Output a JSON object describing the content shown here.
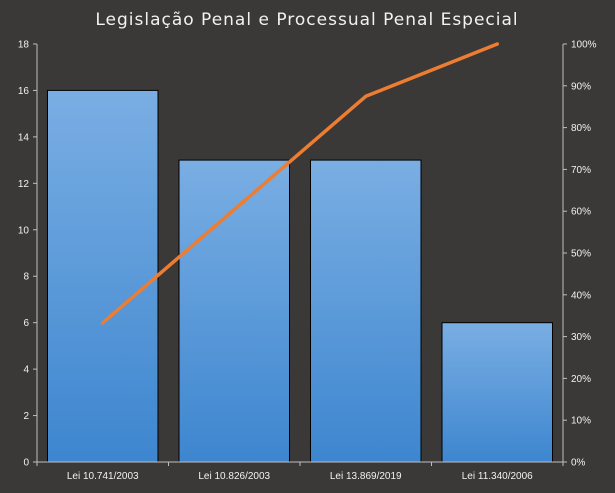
{
  "chart_data": {
    "type": "bar",
    "title": "Legislação Penal e Processual Penal Especial",
    "categories": [
      "Lei 10.741/2003",
      "Lei 10.826/2003",
      "Lei 13.869/2019",
      "Lei 11.340/2006"
    ],
    "series": [
      {
        "type": "bar",
        "values": [
          16,
          13,
          13,
          6
        ],
        "axis": "left"
      },
      {
        "type": "line",
        "values": [
          33.3,
          60.4,
          87.5,
          100
        ],
        "axis": "right",
        "unit": "%"
      }
    ],
    "ylim": [
      0,
      18
    ],
    "yticks": [
      "0",
      "2",
      "4",
      "6",
      "8",
      "10",
      "12",
      "14",
      "16",
      "18"
    ],
    "y2lim": [
      0,
      100
    ],
    "y2ticks": [
      "0%",
      "10%",
      "20%",
      "30%",
      "40%",
      "50%",
      "60%",
      "70%",
      "80%",
      "90%",
      "100%"
    ],
    "grid": false,
    "legend": "none",
    "colors": {
      "background": "#3b3838",
      "bar_top": "#7aaee3",
      "bar_bottom": "#3d86cf",
      "bar_edge": "#000000",
      "line": "#ed7d31",
      "axis": "#bfbfbf",
      "text": "#f2f2f2"
    }
  }
}
